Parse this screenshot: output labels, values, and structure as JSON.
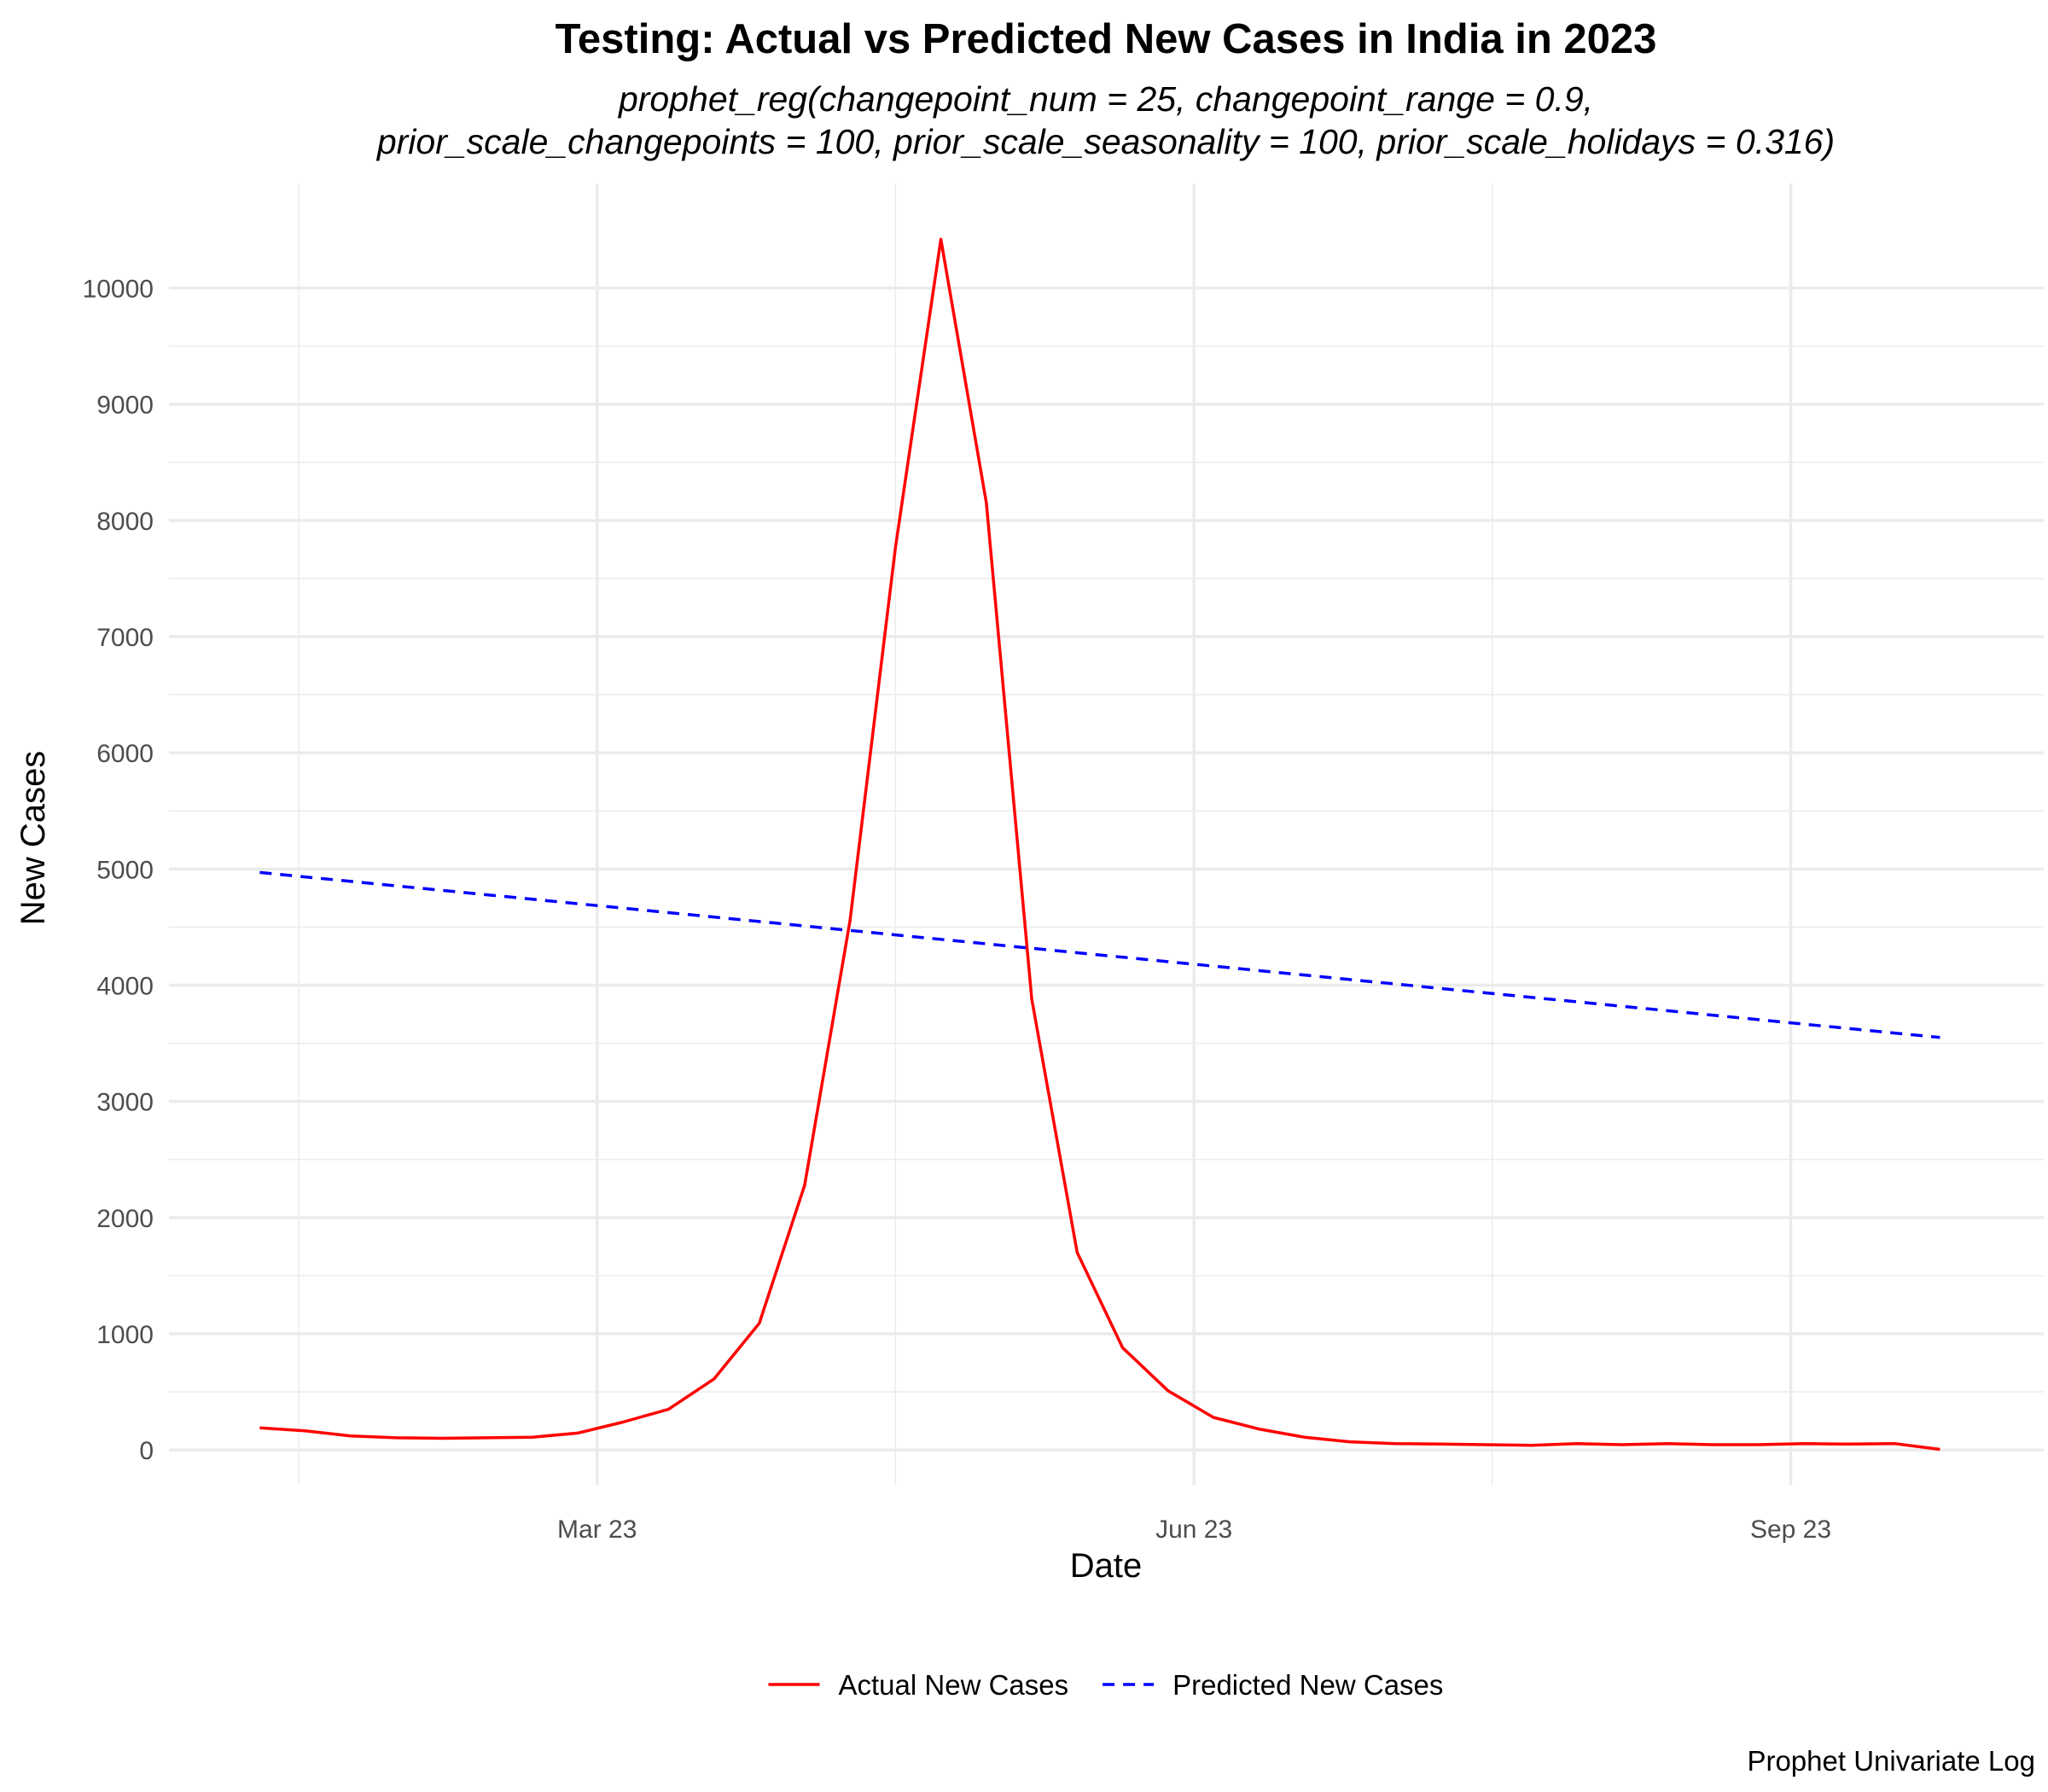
{
  "chart_data": {
    "type": "line",
    "title": "Testing: Actual vs Predicted New Cases in India in 2023",
    "subtitle_lines": [
      "prophet_reg(changepoint_num = 25, changepoint_range = 0.9,",
      "prior_scale_changepoints = 100, prior_scale_seasonality = 100, prior_scale_holidays = 0.316)"
    ],
    "xlabel": "Date",
    "ylabel": "New Cases",
    "caption": "Prophet Univariate Log",
    "x_ticks": [
      {
        "date": "2023-03-01",
        "label": "Mar 23"
      },
      {
        "date": "2023-06-01",
        "label": "Jun 23"
      },
      {
        "date": "2023-09-01",
        "label": "Sep 23"
      }
    ],
    "xlim": [
      "2022-12-25",
      "2023-10-10"
    ],
    "ylim": [
      -300,
      10900
    ],
    "y_ticks": [
      0,
      1000,
      2000,
      3000,
      4000,
      5000,
      6000,
      7000,
      8000,
      9000,
      10000
    ],
    "grid": true,
    "legend_position": "bottom",
    "series": [
      {
        "name": "Actual New Cases",
        "color": "#ff0000",
        "dash": "solid",
        "points": [
          {
            "x": "2023-01-08",
            "y": 190
          },
          {
            "x": "2023-01-15",
            "y": 165
          },
          {
            "x": "2023-01-22",
            "y": 120
          },
          {
            "x": "2023-01-29",
            "y": 105
          },
          {
            "x": "2023-02-05",
            "y": 100
          },
          {
            "x": "2023-02-12",
            "y": 105
          },
          {
            "x": "2023-02-19",
            "y": 110
          },
          {
            "x": "2023-02-26",
            "y": 145
          },
          {
            "x": "2023-03-05",
            "y": 240
          },
          {
            "x": "2023-03-12",
            "y": 350
          },
          {
            "x": "2023-03-19",
            "y": 610
          },
          {
            "x": "2023-03-26",
            "y": 1090
          },
          {
            "x": "2023-04-02",
            "y": 2280
          },
          {
            "x": "2023-04-09",
            "y": 4560
          },
          {
            "x": "2023-04-16",
            "y": 7770
          },
          {
            "x": "2023-04-23",
            "y": 10420
          },
          {
            "x": "2023-04-30",
            "y": 8150
          },
          {
            "x": "2023-05-07",
            "y": 3880
          },
          {
            "x": "2023-05-14",
            "y": 1700
          },
          {
            "x": "2023-05-21",
            "y": 880
          },
          {
            "x": "2023-05-28",
            "y": 510
          },
          {
            "x": "2023-06-04",
            "y": 280
          },
          {
            "x": "2023-06-11",
            "y": 180
          },
          {
            "x": "2023-06-18",
            "y": 110
          },
          {
            "x": "2023-06-25",
            "y": 70
          },
          {
            "x": "2023-07-02",
            "y": 55
          },
          {
            "x": "2023-07-09",
            "y": 50
          },
          {
            "x": "2023-07-16",
            "y": 45
          },
          {
            "x": "2023-07-23",
            "y": 40
          },
          {
            "x": "2023-07-30",
            "y": 55
          },
          {
            "x": "2023-08-06",
            "y": 45
          },
          {
            "x": "2023-08-13",
            "y": 55
          },
          {
            "x": "2023-08-20",
            "y": 45
          },
          {
            "x": "2023-08-27",
            "y": 45
          },
          {
            "x": "2023-09-03",
            "y": 55
          },
          {
            "x": "2023-09-10",
            "y": 50
          },
          {
            "x": "2023-09-17",
            "y": 55
          },
          {
            "x": "2023-09-24",
            "y": 5
          }
        ]
      },
      {
        "name": "Predicted New Cases",
        "color": "#0000ff",
        "dash": "dashed",
        "points": [
          {
            "x": "2023-01-08",
            "y": 4970
          },
          {
            "x": "2023-09-24",
            "y": 3550
          }
        ]
      }
    ]
  }
}
